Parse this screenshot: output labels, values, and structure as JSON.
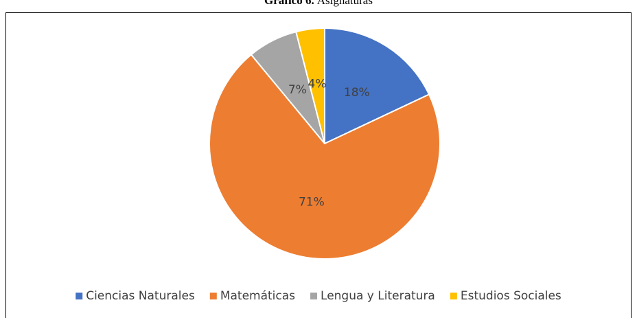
{
  "chart_data": {
    "type": "pie",
    "title": {
      "number": "Gráfico 6.",
      "text": "Asignaturas"
    },
    "categories": [
      "Ciencias Naturales",
      "Matemáticas",
      "Lengua y Literatura",
      "Estudios Sociales"
    ],
    "values": [
      18,
      71,
      7,
      4
    ],
    "value_labels": [
      "18%",
      "71%",
      "7%",
      "4%"
    ],
    "colors": [
      "#4472c4",
      "#ed7d31",
      "#a5a5a5",
      "#ffc000"
    ],
    "legend": "bottom"
  }
}
